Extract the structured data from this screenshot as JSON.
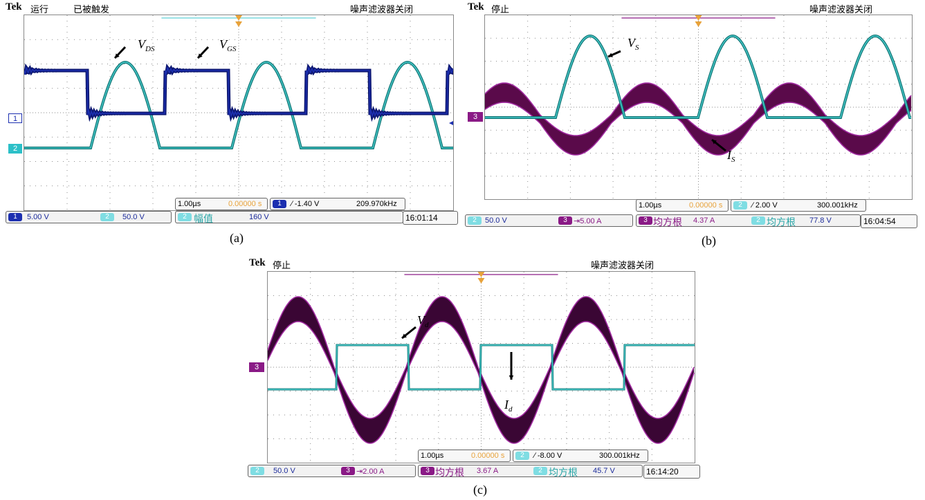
{
  "panels": {
    "a": {
      "brand": "Tek",
      "state": "运行",
      "trig_state": "已被触发",
      "noise_filter": "噪声滤波器关闭",
      "timebase": "1.00µs",
      "delay": "0.00000 s",
      "trigger_channel": "1",
      "trigger_level": "∕ -1.40 V",
      "trigger_freq": "209.970kHz",
      "ch1_chip": "1",
      "ch1_scale": "5.00 V",
      "ch2_chip": "2",
      "ch2_scale": "50.0 V",
      "meas_chip": "2",
      "meas_name": "幅值",
      "meas_value": "160 V",
      "clock": "16:01:14",
      "marker_1": "1",
      "marker_2": "2",
      "caption": "(a)",
      "label_vds": "V",
      "label_vds_sub": "DS",
      "label_vgs": "V",
      "label_vgs_sub": "GS"
    },
    "b": {
      "brand": "Tek",
      "state": "停止",
      "noise_filter": "噪声滤波器关闭",
      "timebase": "1.00µs",
      "delay": "0.00000 s",
      "trigger_channel": "2",
      "trigger_level": "∕ 2.00 V",
      "trigger_freq": "300.001kHz",
      "ch2_chip": "2",
      "ch2_scale": "50.0 V",
      "ch3_chip": "3",
      "ch3_scale": "⇥5.00 A",
      "meas1_chip": "3",
      "meas1_name": "均方根",
      "meas1_value": "4.37 A",
      "meas2_chip": "2",
      "meas2_name": "均方根",
      "meas2_value": "77.8 V",
      "clock": "16:04:54",
      "marker_3": "3",
      "caption": "(b)",
      "label_vs": "V",
      "label_vs_sub": "S",
      "label_is": "I",
      "label_is_sub": "S"
    },
    "c": {
      "brand": "Tek",
      "state": "停止",
      "noise_filter": "噪声滤波器关闭",
      "timebase": "1.00µs",
      "delay": "0.00000 s",
      "trigger_channel": "2",
      "trigger_level": "∕ -8.00 V",
      "trigger_freq": "300.001kHz",
      "ch2_chip": "2",
      "ch2_scale": "50.0 V",
      "ch3_chip": "3",
      "ch3_scale": "⇥2.00 A",
      "meas1_chip": "3",
      "meas1_name": "均方根",
      "meas1_value": "3.67 A",
      "meas2_chip": "2",
      "meas2_name": "均方根",
      "meas2_value": "45.7 V",
      "clock": "16:14:20",
      "marker_3": "3",
      "caption": "(c)",
      "label_vd": "V",
      "label_vd_sub": "d",
      "label_id": "I",
      "label_id_sub": "d"
    }
  },
  "colors": {
    "ch1": "#1c2fb0",
    "ch2": "#2aa7a8",
    "ch3": "#5a0a4a",
    "trigger_orange": "#e8a23a",
    "grid": "#8a8a8a"
  },
  "chart_data": [
    {
      "type": "line",
      "panel": "a",
      "series": [
        {
          "name": "V_DS",
          "shape": "half-wave sine pulse",
          "color": "ch2"
        },
        {
          "name": "V_GS",
          "shape": "square wave with ringing",
          "color": "ch1"
        }
      ],
      "x_divisions": 10,
      "y_divisions": 8,
      "frequency_kHz": 209.97
    },
    {
      "type": "line",
      "panel": "b",
      "series": [
        {
          "name": "V_S",
          "shape": "half-wave sine pulse",
          "color": "ch2"
        },
        {
          "name": "I_S",
          "shape": "sine",
          "color": "ch3"
        }
      ],
      "x_divisions": 10,
      "y_divisions": 8,
      "frequency_kHz": 300.001
    },
    {
      "type": "line",
      "panel": "c",
      "series": [
        {
          "name": "V_d",
          "shape": "sine",
          "color": "ch3"
        },
        {
          "name": "I_d",
          "shape": "square wave",
          "color": "ch2"
        }
      ],
      "x_divisions": 10,
      "y_divisions": 8,
      "frequency_kHz": 300.001
    }
  ]
}
